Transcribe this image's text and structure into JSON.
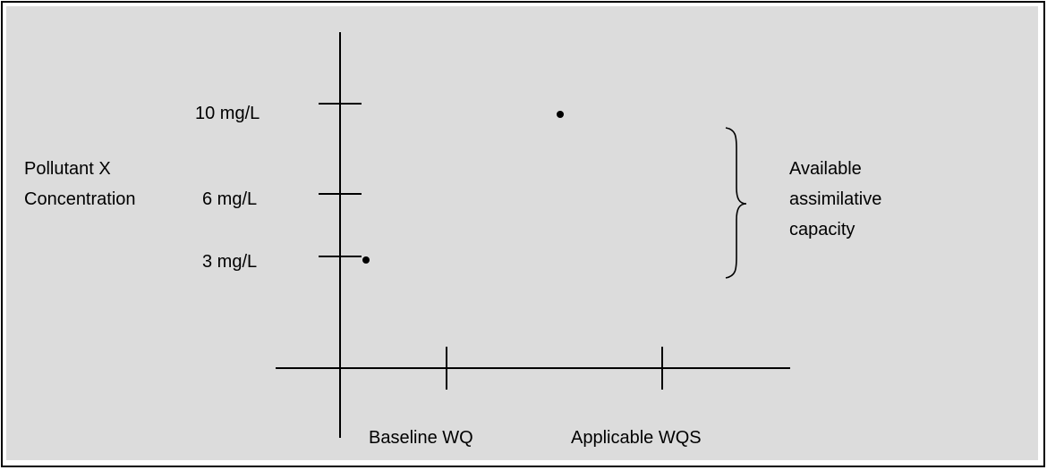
{
  "y_axis": {
    "title_lines": [
      "Pollutant X",
      "Concentration"
    ],
    "ticks": [
      "10 mg/L",
      "6 mg/L",
      "3 mg/L"
    ]
  },
  "x_axis": {
    "labels": [
      "Baseline WQ",
      "Applicable WQS"
    ]
  },
  "points": [
    {
      "category": "Baseline WQ",
      "value_mg_per_l": 3
    },
    {
      "category": "Applicable WQS",
      "value_mg_per_l": 10
    }
  ],
  "annotation": {
    "lines": [
      "Available",
      "assimilative",
      "capacity"
    ]
  },
  "colors": {
    "background": "#dcdcdc",
    "ink": "#000000"
  }
}
